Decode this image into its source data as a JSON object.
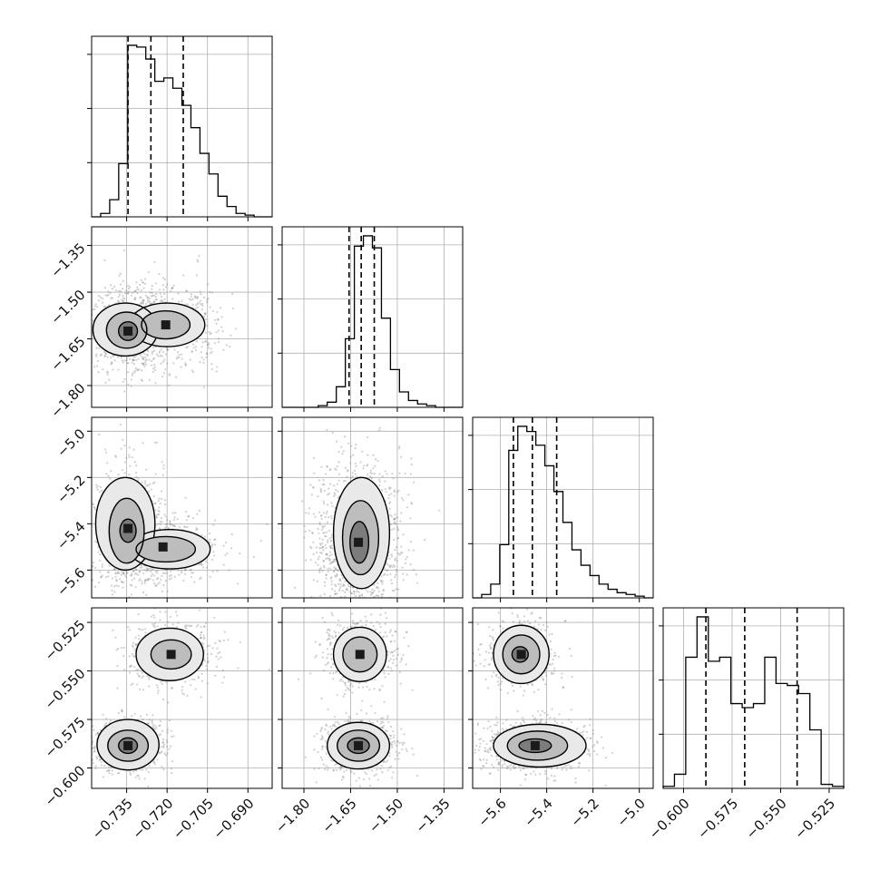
{
  "chart_data": {
    "type": "corner",
    "n_params": 4,
    "colors": {
      "axes": "#000000",
      "grid": "#b0b0b0",
      "hist": "#000000",
      "points": "#777777",
      "contour": "#000000",
      "quantile": "#000000"
    },
    "grid": true,
    "params": [
      {
        "range": [
          -0.748,
          -0.681
        ],
        "ticks": [
          -0.735,
          -0.72,
          -0.705,
          -0.69
        ],
        "tick_labels": [
          "−0.735",
          "−0.720",
          "−0.705",
          "−0.690"
        ],
        "quantiles": [
          -0.7345,
          -0.726,
          -0.714
        ]
      },
      {
        "range": [
          -1.87,
          -1.29
        ],
        "ticks": [
          -1.8,
          -1.65,
          -1.5,
          -1.35
        ],
        "tick_labels": [
          "−1.80",
          "−1.65",
          "−1.50",
          "−1.35"
        ],
        "quantiles": [
          -1.655,
          -1.616,
          -1.574
        ]
      },
      {
        "range": [
          -5.72,
          -4.94
        ],
        "ticks": [
          -5.6,
          -5.4,
          -5.2,
          -5.0
        ],
        "tick_labels": [
          "−5.6",
          "−5.4",
          "−5.2",
          "−5.0"
        ],
        "quantiles": [
          -5.544,
          -5.462,
          -5.357
        ]
      },
      {
        "range": [
          -0.6105,
          -0.5175
        ],
        "ticks": [
          -0.6,
          -0.575,
          -0.55,
          -0.525
        ],
        "tick_labels": [
          "−0.600",
          "−0.575",
          "−0.550",
          "−0.525"
        ],
        "quantiles": [
          -0.5885,
          -0.5685,
          -0.5415
        ]
      }
    ],
    "histograms": [
      {
        "values": [
          0,
          2,
          10,
          31,
          100,
          99,
          92,
          79,
          81,
          75,
          65,
          52,
          37,
          25,
          12,
          6,
          2,
          1,
          0,
          0
        ]
      },
      {
        "values": [
          0,
          0,
          0,
          0,
          1,
          3,
          12,
          40,
          94,
          100,
          93,
          52,
          22,
          9,
          4,
          2,
          1,
          0,
          0,
          0
        ]
      },
      {
        "values": [
          0,
          2,
          8,
          31,
          86,
          100,
          97,
          89,
          77,
          62,
          44,
          28,
          19,
          13,
          8,
          5,
          3,
          2,
          1,
          0
        ]
      },
      {
        "values": [
          1,
          7,
          65,
          85,
          63,
          65,
          42,
          40,
          42,
          65,
          52,
          51,
          47,
          29,
          2,
          1
        ]
      }
    ],
    "pairs": [
      {
        "i": 1,
        "j": 0,
        "modes": [
          {
            "x": -0.7345,
            "y": -1.625,
            "sx": 0.004,
            "sy": 0.04,
            "w": 0.55
          },
          {
            "x": -0.7205,
            "y": -1.605,
            "sx": 0.006,
            "sy": 0.04,
            "w": 0.45
          }
        ],
        "contour_levels": [
          {
            "modes": [
              {
                "x": -0.7355,
                "y": -1.62,
                "rx": 0.012,
                "ry": 0.085
              },
              {
                "x": -0.72,
                "y": -1.605,
                "rx": 0.014,
                "ry": 0.07
              }
            ]
          },
          {
            "modes": [
              {
                "x": -0.735,
                "y": -1.622,
                "rx": 0.0075,
                "ry": 0.058
              },
              {
                "x": -0.7205,
                "y": -1.605,
                "rx": 0.009,
                "ry": 0.045
              }
            ]
          },
          {
            "modes": [
              {
                "x": -0.7345,
                "y": -1.625,
                "rx": 0.0035,
                "ry": 0.03
              }
            ]
          }
        ]
      },
      {
        "i": 2,
        "j": 0,
        "modes": [
          {
            "x": -0.7345,
            "y": -5.42,
            "sx": 0.004,
            "sy": 0.08,
            "w": 0.55
          },
          {
            "x": -0.7215,
            "y": -5.5,
            "sx": 0.006,
            "sy": 0.045,
            "w": 0.45
          }
        ],
        "contour_levels": [
          {
            "modes": [
              {
                "x": -0.7355,
                "y": -5.4,
                "rx": 0.011,
                "ry": 0.2
              },
              {
                "x": -0.719,
                "y": -5.51,
                "rx": 0.015,
                "ry": 0.085
              }
            ]
          },
          {
            "modes": [
              {
                "x": -0.735,
                "y": -5.43,
                "rx": 0.0065,
                "ry": 0.14
              },
              {
                "x": -0.7205,
                "y": -5.51,
                "rx": 0.011,
                "ry": 0.055
              }
            ]
          },
          {
            "modes": [
              {
                "x": -0.7345,
                "y": -5.43,
                "rx": 0.003,
                "ry": 0.05
              }
            ]
          }
        ]
      },
      {
        "i": 2,
        "j": 1,
        "modes": [
          {
            "x": -1.625,
            "y": -5.48,
            "sx": 0.04,
            "sy": 0.1,
            "w": 1.0
          }
        ],
        "contour_levels": [
          {
            "modes": [
              {
                "x": -1.615,
                "y": -5.44,
                "rx": 0.09,
                "ry": 0.24
              }
            ]
          },
          {
            "modes": [
              {
                "x": -1.618,
                "y": -5.46,
                "rx": 0.058,
                "ry": 0.16
              }
            ]
          },
          {
            "modes": [
              {
                "x": -1.622,
                "y": -5.48,
                "rx": 0.03,
                "ry": 0.09
              }
            ]
          }
        ]
      },
      {
        "i": 3,
        "j": 0,
        "modes": [
          {
            "x": -0.7345,
            "y": -0.5885,
            "sx": 0.004,
            "sy": 0.004,
            "w": 0.55
          },
          {
            "x": -0.7185,
            "y": -0.5415,
            "sx": 0.005,
            "sy": 0.005,
            "w": 0.45
          }
        ],
        "contour_levels": [
          {
            "modes": [
              {
                "x": -0.7345,
                "y": -0.588,
                "rx": 0.0115,
                "ry": 0.013
              },
              {
                "x": -0.719,
                "y": -0.5415,
                "rx": 0.0125,
                "ry": 0.0135
              }
            ]
          },
          {
            "modes": [
              {
                "x": -0.7345,
                "y": -0.5885,
                "rx": 0.0075,
                "ry": 0.008
              },
              {
                "x": -0.7185,
                "y": -0.5415,
                "rx": 0.0075,
                "ry": 0.0075
              }
            ]
          },
          {
            "modes": [
              {
                "x": -0.7345,
                "y": -0.5885,
                "rx": 0.0035,
                "ry": 0.004
              }
            ]
          }
        ]
      },
      {
        "i": 3,
        "j": 1,
        "modes": [
          {
            "x": -1.625,
            "y": -0.5885,
            "sx": 0.035,
            "sy": 0.004,
            "w": 0.55
          },
          {
            "x": -1.62,
            "y": -0.5415,
            "sx": 0.035,
            "sy": 0.005,
            "w": 0.45
          }
        ],
        "contour_levels": [
          {
            "modes": [
              {
                "x": -1.625,
                "y": -0.5885,
                "rx": 0.1,
                "ry": 0.012
              },
              {
                "x": -1.62,
                "y": -0.5415,
                "rx": 0.085,
                "ry": 0.014
              }
            ]
          },
          {
            "modes": [
              {
                "x": -1.625,
                "y": -0.5885,
                "rx": 0.068,
                "ry": 0.008
              },
              {
                "x": -1.62,
                "y": -0.5415,
                "rx": 0.055,
                "ry": 0.009
              }
            ]
          },
          {
            "modes": [
              {
                "x": -1.625,
                "y": -0.5885,
                "rx": 0.035,
                "ry": 0.004
              }
            ]
          }
        ]
      },
      {
        "i": 3,
        "j": 2,
        "modes": [
          {
            "x": -5.45,
            "y": -0.5885,
            "sx": 0.07,
            "sy": 0.004,
            "w": 0.55
          },
          {
            "x": -5.51,
            "y": -0.5415,
            "sx": 0.045,
            "sy": 0.005,
            "w": 0.45
          }
        ],
        "contour_levels": [
          {
            "modes": [
              {
                "x": -5.43,
                "y": -0.5885,
                "rx": 0.2,
                "ry": 0.011
              },
              {
                "x": -5.51,
                "y": -0.5415,
                "rx": 0.12,
                "ry": 0.015
              }
            ]
          },
          {
            "modes": [
              {
                "x": -5.44,
                "y": -0.5885,
                "rx": 0.13,
                "ry": 0.0075
              },
              {
                "x": -5.51,
                "y": -0.5415,
                "rx": 0.08,
                "ry": 0.01
              }
            ]
          },
          {
            "modes": [
              {
                "x": -5.45,
                "y": -0.5885,
                "rx": 0.07,
                "ry": 0.0035
              },
              {
                "x": -5.515,
                "y": -0.5415,
                "rx": 0.035,
                "ry": 0.004
              }
            ]
          }
        ]
      }
    ]
  }
}
